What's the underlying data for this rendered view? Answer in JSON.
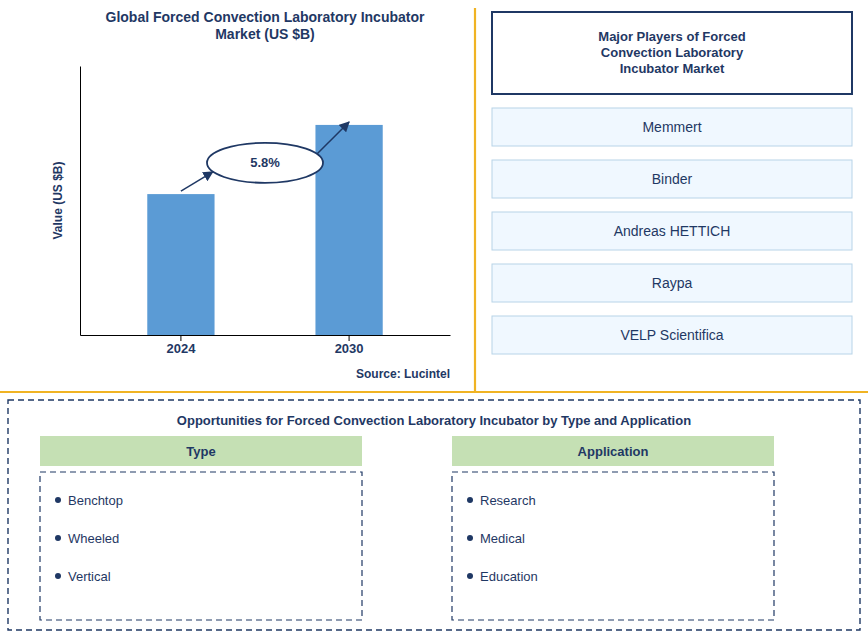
{
  "chart_data": {
    "type": "bar",
    "title": "Global Forced Convection Laboratory Incubator\nMarket (US $B)",
    "categories": [
      "2024",
      "2030"
    ],
    "values": [
      0.55,
      0.82
    ],
    "color": "#5B9BD5",
    "y_label": "Value (US $B)",
    "ylim": [
      0,
      1.05
    ],
    "tick_labels": "x",
    "grid": false,
    "annotations": [
      "5.8%",
      "Source: Lucintel"
    ]
  },
  "major_players": {
    "title": "Major Players of Forced\nConvection Laboratory\nIncubator Market",
    "items": [
      "Memmert",
      "Binder",
      "Andreas HETTICH",
      "Raypa",
      "VELP Scientifica"
    ]
  },
  "opportunities": {
    "title": "Opportunities for Forced Convection Laboratory Incubator by Type and Application",
    "columns": [
      {
        "header": "Type",
        "items": [
          "Benchtop",
          "Wheeled",
          "Vertical"
        ]
      },
      {
        "header": "Application",
        "items": [
          "Research",
          "Medical",
          "Education"
        ]
      }
    ]
  }
}
